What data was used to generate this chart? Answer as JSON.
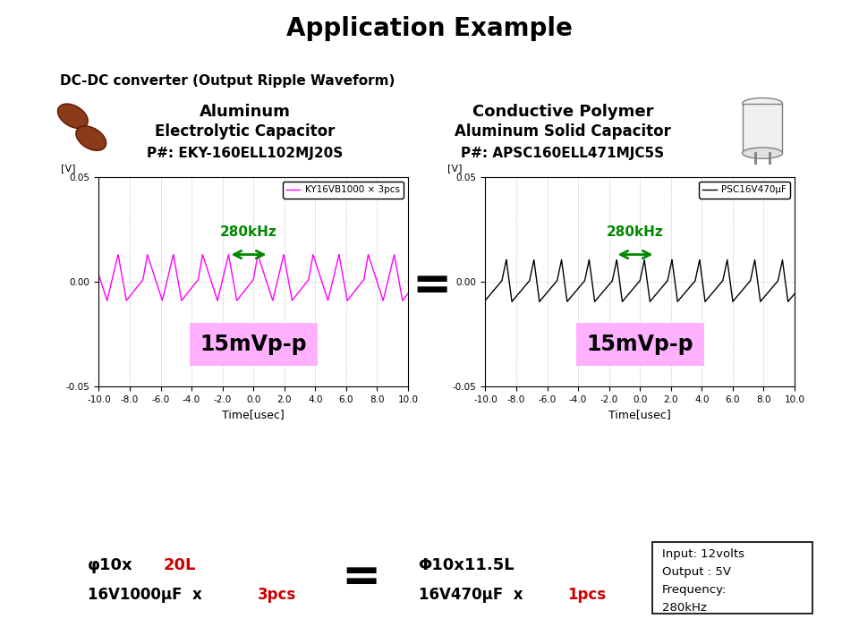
{
  "title": "Application Example",
  "subtitle": "DC-DC converter (Output Ripple Waveform)",
  "left_box_color": "#FFFF00",
  "right_box_color": "#00FFFF",
  "left_box_text_line1": "Aluminum",
  "left_box_text_line2": "Electrolytic Capacitor",
  "left_box_text_line3": "P#: EKY-160ELL102MJ20S",
  "right_box_text_line1": "Conductive Polymer",
  "right_box_text_line2": "Aluminum Solid Capacitor",
  "right_box_text_line3": "P#: APSC160ELL471MJC5S",
  "left_legend": "KY16VB1000 × 3pcs",
  "right_legend": "PSC16V470μF",
  "left_wave_color": "#FF00FF",
  "right_wave_color": "#000000",
  "freq_label": "280kHz",
  "freq_color": "#008800",
  "left_vpp_label": "15mVp-p",
  "right_vpp_label": "15mVp-p",
  "vpp_bg_color": "#FFB0FF",
  "xlim": [
    -10.0,
    10.0
  ],
  "ylim": [
    -0.05,
    0.05
  ],
  "xticks": [
    -10.0,
    -8.0,
    -6.0,
    -4.0,
    -2.0,
    0.0,
    2.0,
    4.0,
    6.0,
    8.0,
    10.0
  ],
  "yticks": [
    -0.05,
    0.0,
    0.05
  ],
  "xlabel": "Time[usec]",
  "ylabel": "[V]",
  "bottom_left_color": "#FFFF00",
  "bottom_left_line1a": "φ10x",
  "bottom_left_line1b": "20L",
  "bottom_left_line2a": "16V1000μF  x  ",
  "bottom_left_line2b": "3pcs",
  "bottom_right_color": "#00FFFF",
  "bottom_right_line1": "Φ10x11.5L",
  "bottom_right_line2a": "16V470μF  x  ",
  "bottom_right_line2b": "1pcs",
  "info_text_line1": "Input: 12volts",
  "info_text_line2": "Output : 5V",
  "info_text_line3": "Frequency:",
  "info_text_line4": "280kHz"
}
